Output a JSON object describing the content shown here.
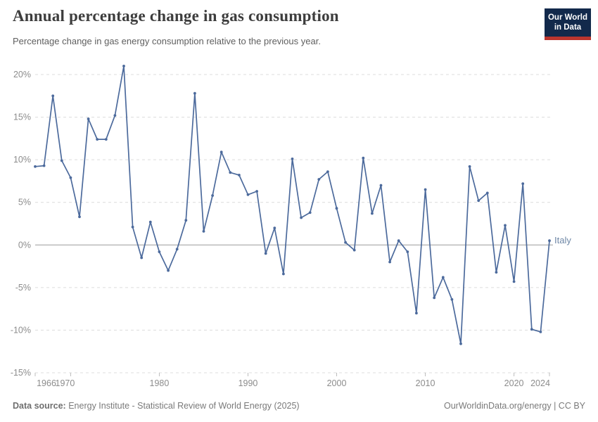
{
  "header": {
    "title": "Annual percentage change in gas consumption",
    "subtitle": "Percentage change in gas energy consumption relative to the previous year.",
    "logo": {
      "line1": "Our World",
      "line2": "in Data"
    }
  },
  "chart_data": {
    "type": "line",
    "title": "Annual percentage change in gas consumption",
    "entity": "Italy",
    "unit": "%",
    "x": [
      1966,
      1967,
      1968,
      1969,
      1970,
      1971,
      1972,
      1973,
      1974,
      1975,
      1976,
      1977,
      1978,
      1979,
      1980,
      1981,
      1982,
      1983,
      1984,
      1985,
      1986,
      1987,
      1988,
      1989,
      1990,
      1991,
      1992,
      1993,
      1994,
      1995,
      1996,
      1997,
      1998,
      1999,
      2000,
      2001,
      2002,
      2003,
      2004,
      2005,
      2006,
      2007,
      2008,
      2009,
      2010,
      2011,
      2012,
      2013,
      2014,
      2015,
      2016,
      2017,
      2018,
      2019,
      2020,
      2021,
      2022,
      2023,
      2024
    ],
    "series": [
      {
        "name": "Italy",
        "values": [
          9.2,
          9.3,
          17.5,
          9.9,
          7.9,
          3.3,
          14.8,
          12.4,
          12.4,
          15.2,
          21.0,
          2.1,
          -1.5,
          2.7,
          -0.8,
          -3.0,
          -0.5,
          2.9,
          17.8,
          1.6,
          5.8,
          10.9,
          8.5,
          8.2,
          5.9,
          6.3,
          -1.0,
          2.0,
          -3.4,
          10.1,
          3.2,
          3.8,
          7.7,
          8.6,
          4.3,
          0.3,
          -0.6,
          10.2,
          3.7,
          7.0,
          -2.0,
          0.5,
          -0.8,
          -8.0,
          6.5,
          -6.2,
          -3.8,
          -6.4,
          -11.6,
          9.2,
          5.2,
          6.1,
          -3.2,
          2.3,
          -4.3,
          7.2,
          -9.9,
          -10.2,
          0.5
        ]
      }
    ],
    "xlim": [
      1966,
      2024
    ],
    "ylim": [
      -15,
      20
    ],
    "xticks": [
      1966,
      1970,
      1980,
      1990,
      2000,
      2010,
      2020,
      2024
    ],
    "xtick_labels": [
      "1966",
      "1970",
      "1980",
      "1990",
      "2000",
      "2010",
      "2020",
      "2024"
    ],
    "yticks": [
      20,
      15,
      10,
      5,
      0,
      -5,
      -10,
      -15
    ],
    "ytick_labels": [
      "20%",
      "15%",
      "10%",
      "5%",
      "0%",
      "-5%",
      "-10%",
      "-15%"
    ],
    "grid": "horizontal dashed, solid zero line",
    "legend": "entity label at line end"
  },
  "footer": {
    "source_label": "Data source:",
    "source_text": " Energy Institute - Statistical Review of World Energy (2025)",
    "credit": "OurWorldinData.org/energy | CC BY"
  },
  "colors": {
    "line": "#4c6a9c",
    "entity_label": "#6e87a6",
    "grid": "#dcdcdc",
    "zero_line": "#9a9a9a",
    "tick_mark": "#bcbcbc",
    "tick_text": "#8c8c8c",
    "title_text": "#3d3d3d",
    "subtitle_text": "#5f5f5f",
    "footer_text": "#7a7a7a",
    "logo_bg": "#12294b",
    "logo_stripe": "#bb352e"
  }
}
